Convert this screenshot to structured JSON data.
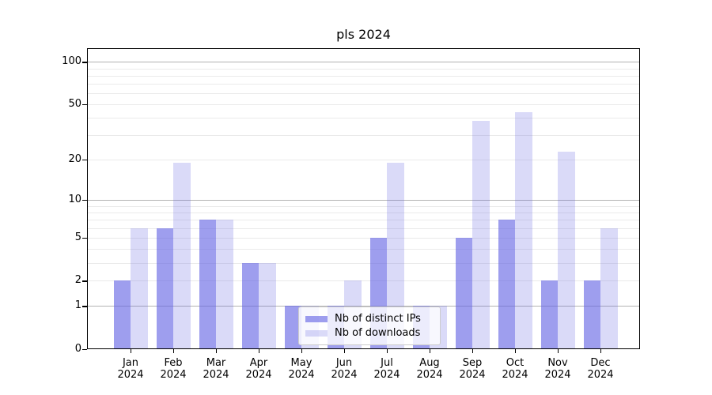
{
  "chart_data": {
    "type": "bar",
    "title": "pls 2024",
    "categories": [
      "Jan 2024",
      "Feb 2024",
      "Mar 2024",
      "Apr 2024",
      "May 2024",
      "Jun 2024",
      "Jul 2024",
      "Aug 2024",
      "Sep 2024",
      "Oct 2024",
      "Nov 2024",
      "Dec 2024"
    ],
    "series": [
      {
        "name": "Nb of distinct IPs",
        "values": [
          2,
          6,
          7,
          3,
          1,
          1,
          5,
          1,
          5,
          7,
          2,
          2
        ],
        "color": "#6363E3",
        "alpha": 0.62
      },
      {
        "name": "Nb of downloads",
        "values": [
          6,
          19,
          7,
          3,
          1,
          2,
          19,
          1,
          38,
          44,
          23,
          6
        ],
        "color": "#6363E3",
        "alpha": 0.24
      }
    ],
    "xlabel": "",
    "ylabel": "",
    "yscale": "log1p",
    "ylim": [
      0,
      125
    ],
    "yticks": [
      0,
      1,
      2,
      5,
      10,
      20,
      50,
      100
    ],
    "grid_major": [
      1,
      10,
      100
    ],
    "grid_minor": [
      2,
      3,
      4,
      5,
      6,
      7,
      8,
      9,
      20,
      30,
      40,
      50,
      60,
      70,
      80,
      90
    ],
    "grid": "on",
    "legend_position": "lower center"
  },
  "colors": {
    "background": "#ffffff",
    "bar_base": "#6363E3",
    "grid_major": "#b2b2b2",
    "grid_minor": "#eaeaea",
    "axis": "#000000",
    "legend_border": "#cccccc"
  }
}
